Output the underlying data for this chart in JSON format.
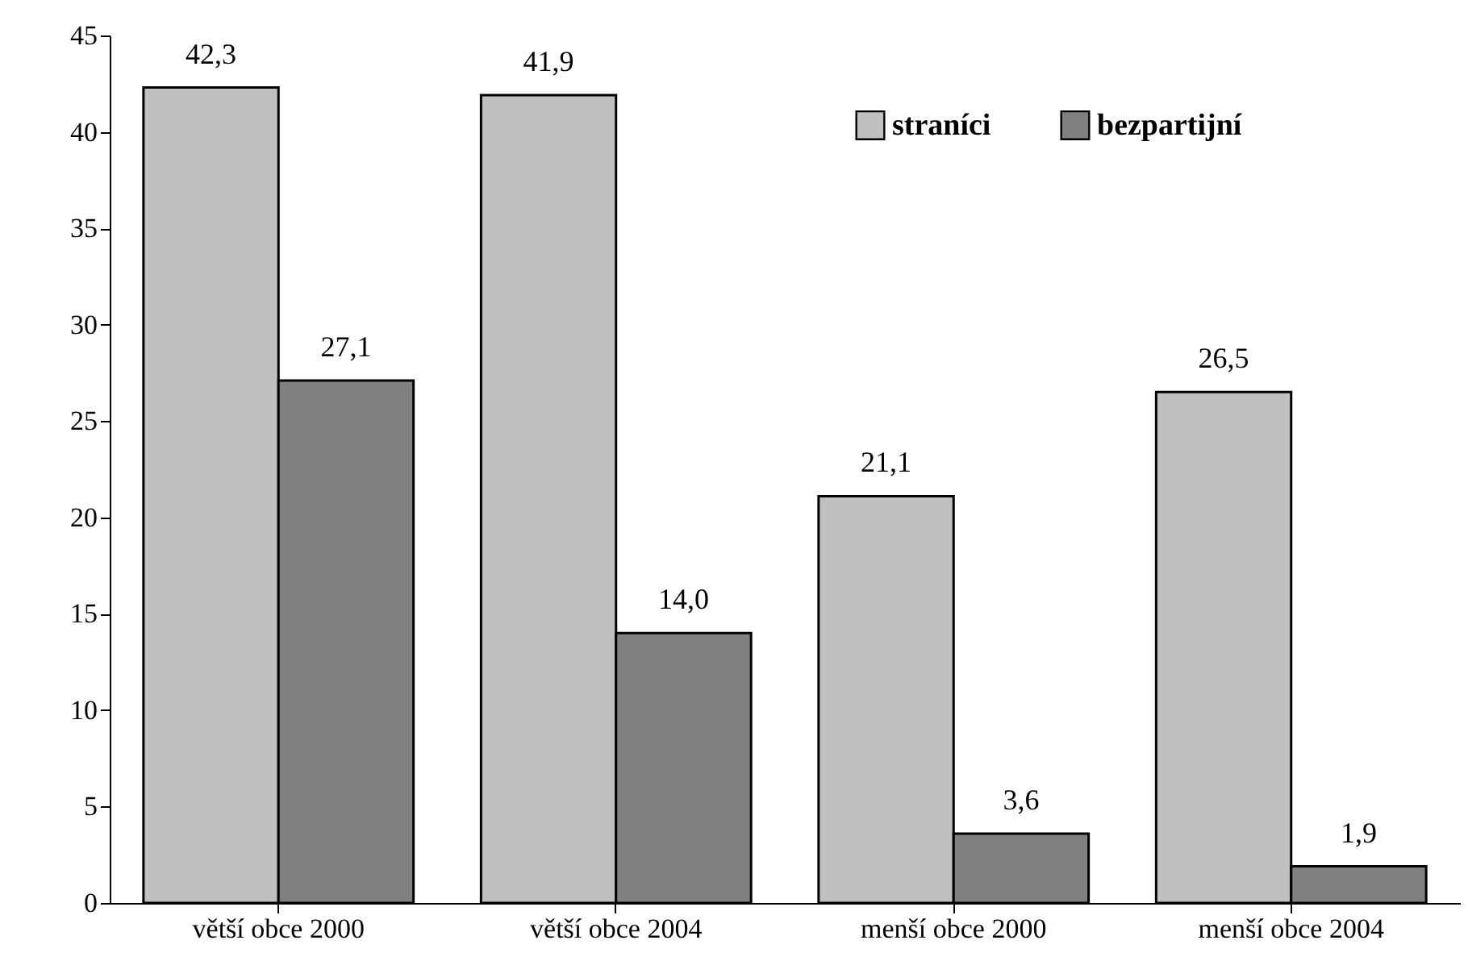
{
  "chart_data": {
    "type": "bar",
    "categories": [
      "větší obce 2000",
      "větší obce 2004",
      "menší obce 2000",
      "menší obce 2004"
    ],
    "series": [
      {
        "name": "straníci",
        "color": "#c0c0c0",
        "values": [
          42.3,
          41.9,
          21.1,
          26.5
        ],
        "value_labels": [
          "42,3",
          "41,9",
          "21,1",
          "26,5"
        ]
      },
      {
        "name": "bezpartijní",
        "color": "#808080",
        "values": [
          27.1,
          14.0,
          3.6,
          1.9
        ],
        "value_labels": [
          "27,1",
          "14,0",
          "3,6",
          "1,9"
        ]
      }
    ],
    "ylim": [
      0,
      45
    ],
    "yticks": [
      0,
      5,
      10,
      15,
      20,
      25,
      30,
      35,
      40,
      45
    ],
    "grid": false,
    "legend": "top right"
  }
}
